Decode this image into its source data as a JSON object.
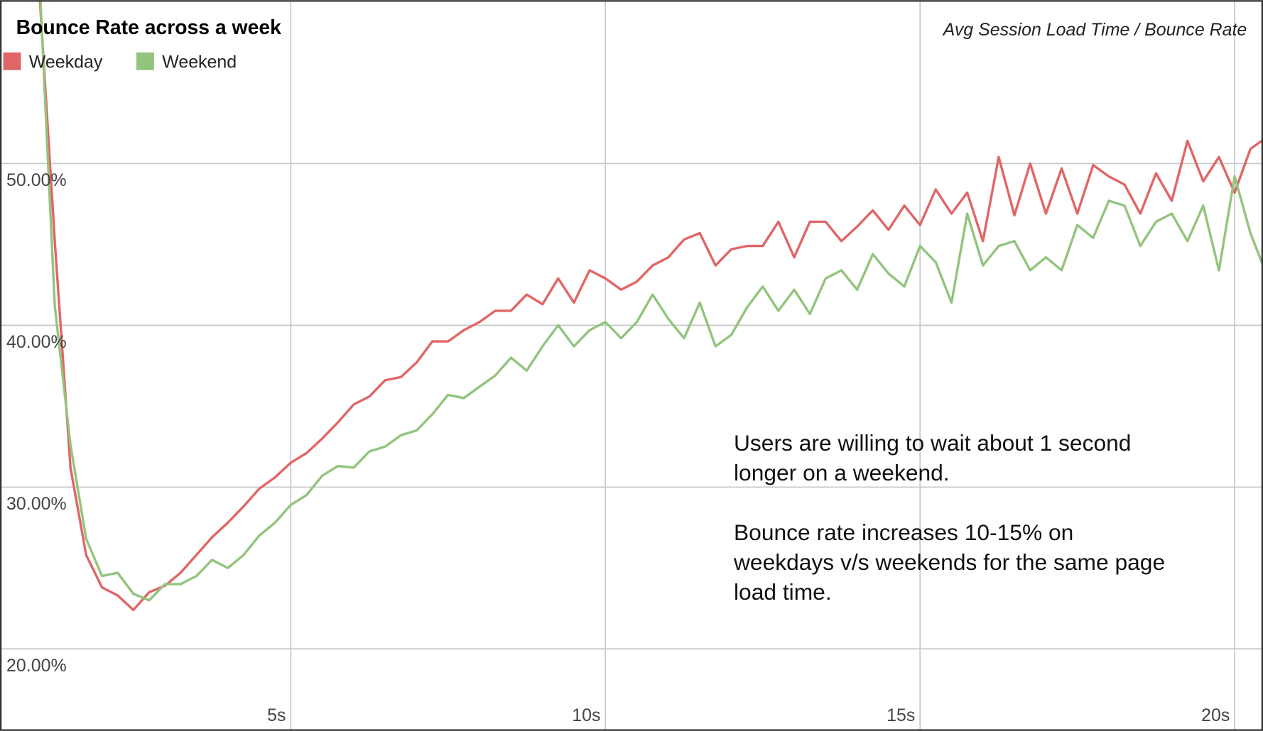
{
  "chart_data": {
    "type": "line",
    "title": "Bounce Rate across a week",
    "axis_label": "Avg Session Load Time / Bounce Rate",
    "annotations": [
      "Users are willing to wait about 1 second",
      "longer on a weekend.",
      "Bounce rate increases 10-15% on",
      "weekdays v/s weekends for the same page",
      "load time."
    ],
    "x": [
      1.0,
      1.25,
      1.5,
      1.75,
      2.0,
      2.25,
      2.5,
      2.75,
      3.0,
      3.25,
      3.5,
      3.75,
      4.0,
      4.25,
      4.5,
      4.75,
      5.0,
      5.25,
      5.5,
      5.75,
      6.0,
      6.25,
      6.5,
      6.75,
      7.0,
      7.25,
      7.5,
      7.75,
      8.0,
      8.25,
      8.5,
      8.75,
      9.0,
      9.25,
      9.5,
      9.75,
      10.0,
      10.25,
      10.5,
      10.75,
      11.0,
      11.25,
      11.5,
      11.75,
      12.0,
      12.25,
      12.5,
      12.75,
      13.0,
      13.25,
      13.5,
      13.75,
      14.0,
      14.25,
      14.5,
      14.75,
      15.0,
      15.25,
      15.5,
      15.75,
      16.0,
      16.25,
      16.5,
      16.75,
      17.0,
      17.25,
      17.5,
      17.75,
      18.0,
      18.25,
      18.5,
      18.75,
      19.0,
      19.25,
      19.5,
      19.75,
      20.0,
      20.25,
      20.5
    ],
    "series": [
      {
        "name": "Weekday",
        "color": "#e06666",
        "values": [
          61,
          45.2,
          31.2,
          25.8,
          23.8,
          23.3,
          22.4,
          23.5,
          23.9,
          24.7,
          25.8,
          26.9,
          27.8,
          28.8,
          29.9,
          30.6,
          31.5,
          32.1,
          33.0,
          34.0,
          35.1,
          35.6,
          36.6,
          36.8,
          37.7,
          39.0,
          39.0,
          39.7,
          40.2,
          40.9,
          40.9,
          41.9,
          41.3,
          42.9,
          41.4,
          43.4,
          42.9,
          42.2,
          42.7,
          43.7,
          44.2,
          45.3,
          45.7,
          43.7,
          44.7,
          44.9,
          44.9,
          46.4,
          44.2,
          46.4,
          46.4,
          45.2,
          46.1,
          47.1,
          45.9,
          47.4,
          46.2,
          48.4,
          46.9,
          48.2,
          45.2,
          50.4,
          46.8,
          50.0,
          46.9,
          49.7,
          46.9,
          49.9,
          49.2,
          48.7,
          46.9,
          49.4,
          47.7,
          51.4,
          48.9,
          50.4,
          48.2,
          50.9,
          51.6
        ]
      },
      {
        "name": "Weekend",
        "color": "#93c47d",
        "values": [
          62,
          41.2,
          32.6,
          26.8,
          24.5,
          24.7,
          23.4,
          23.0,
          24.0,
          24.0,
          24.5,
          25.5,
          25.0,
          25.8,
          27.0,
          27.8,
          28.9,
          29.5,
          30.7,
          31.3,
          31.2,
          32.2,
          32.5,
          33.2,
          33.5,
          34.5,
          35.7,
          35.5,
          36.2,
          36.9,
          38.0,
          37.2,
          38.7,
          40.0,
          38.7,
          39.7,
          40.2,
          39.2,
          40.2,
          41.9,
          40.4,
          39.2,
          41.4,
          38.7,
          39.4,
          41.1,
          42.4,
          40.9,
          42.2,
          40.7,
          42.9,
          43.4,
          42.2,
          44.4,
          43.2,
          42.4,
          44.9,
          43.9,
          41.4,
          46.9,
          43.7,
          44.9,
          45.2,
          43.4,
          44.2,
          43.4,
          46.2,
          45.4,
          47.7,
          47.4,
          44.9,
          46.4,
          46.9,
          45.2,
          47.4,
          43.4,
          49.2,
          45.7,
          43.2
        ]
      }
    ],
    "xlim": [
      0.38,
      20.45
    ],
    "ylim": [
      14.93,
      60.1
    ],
    "xticks": [
      {
        "value": 5,
        "label": "5s"
      },
      {
        "value": 10,
        "label": "10s"
      },
      {
        "value": 15,
        "label": "15s"
      },
      {
        "value": 20,
        "label": "20s"
      }
    ],
    "yticks": [
      {
        "value": 20,
        "label": "20.00%"
      },
      {
        "value": 30,
        "label": "30.00%"
      },
      {
        "value": 40,
        "label": "40.00%"
      },
      {
        "value": 50,
        "label": "50.00%"
      }
    ],
    "grid": true
  }
}
